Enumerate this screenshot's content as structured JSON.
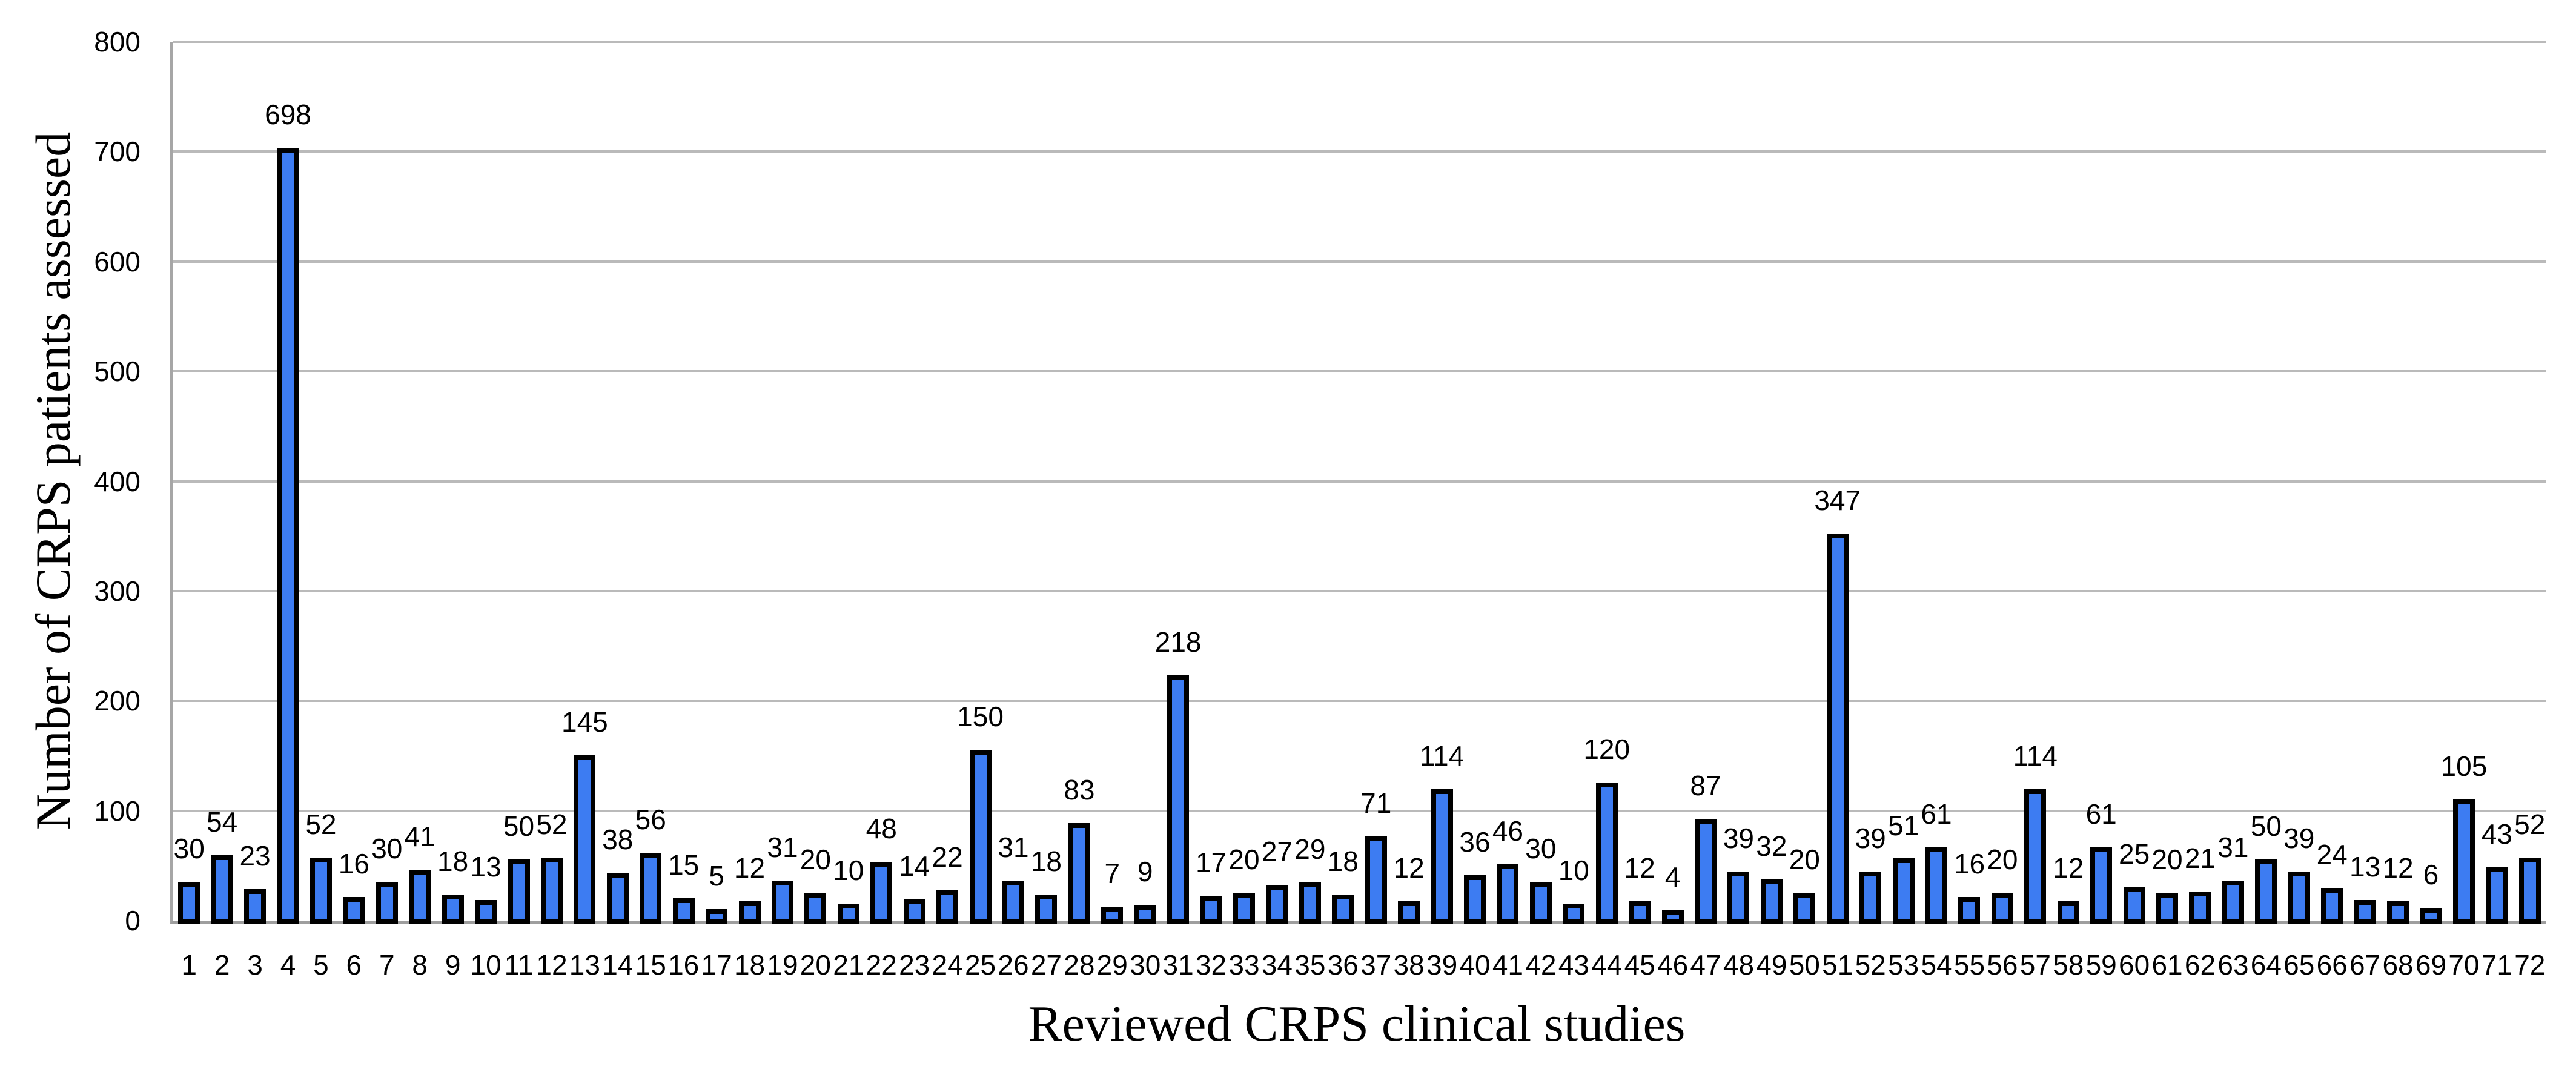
{
  "figure": {
    "background": "#ffffff"
  },
  "chart_data": {
    "type": "bar",
    "title": "",
    "xlabel": "Reviewed CRPS clinical studies",
    "ylabel": "Number of CRPS patients assessed",
    "categories": [
      "1",
      "2",
      "3",
      "4",
      "5",
      "6",
      "7",
      "8",
      "9",
      "10",
      "11",
      "12",
      "13",
      "14",
      "15",
      "16",
      "17",
      "18",
      "19",
      "20",
      "21",
      "22",
      "23",
      "24",
      "25",
      "26",
      "27",
      "28",
      "29",
      "30",
      "31",
      "32",
      "33",
      "34",
      "35",
      "36",
      "37",
      "38",
      "39",
      "40",
      "41",
      "42",
      "43",
      "44",
      "45",
      "46",
      "47",
      "48",
      "49",
      "50",
      "51",
      "52",
      "53",
      "54",
      "55",
      "56",
      "57",
      "58",
      "59",
      "60",
      "61",
      "62",
      "63",
      "64",
      "65",
      "66",
      "67",
      "68",
      "69",
      "70",
      "71",
      "72"
    ],
    "values": [
      30,
      54,
      23,
      698,
      52,
      16,
      30,
      41,
      18,
      13,
      50,
      52,
      145,
      38,
      56,
      15,
      5,
      12,
      31,
      20,
      10,
      48,
      14,
      22,
      150,
      31,
      18,
      83,
      7,
      9,
      218,
      17,
      20,
      27,
      29,
      18,
      71,
      12,
      114,
      36,
      46,
      30,
      10,
      120,
      12,
      4,
      87,
      39,
      32,
      20,
      347,
      39,
      51,
      61,
      16,
      20,
      114,
      12,
      61,
      25,
      20,
      21,
      31,
      50,
      39,
      24,
      13,
      12,
      6,
      105,
      43,
      52
    ],
    "data_labels_visible": true,
    "y_ticks": [
      0,
      100,
      200,
      300,
      400,
      500,
      600,
      700,
      800
    ],
    "ylim": [
      0,
      800
    ],
    "grid": "horizontal",
    "legend": "none",
    "bar_color": "#3D7CF2",
    "bar_border_color": "#000000",
    "gridline_color": "#BABABA",
    "axis_color": "#A6A6A6"
  }
}
